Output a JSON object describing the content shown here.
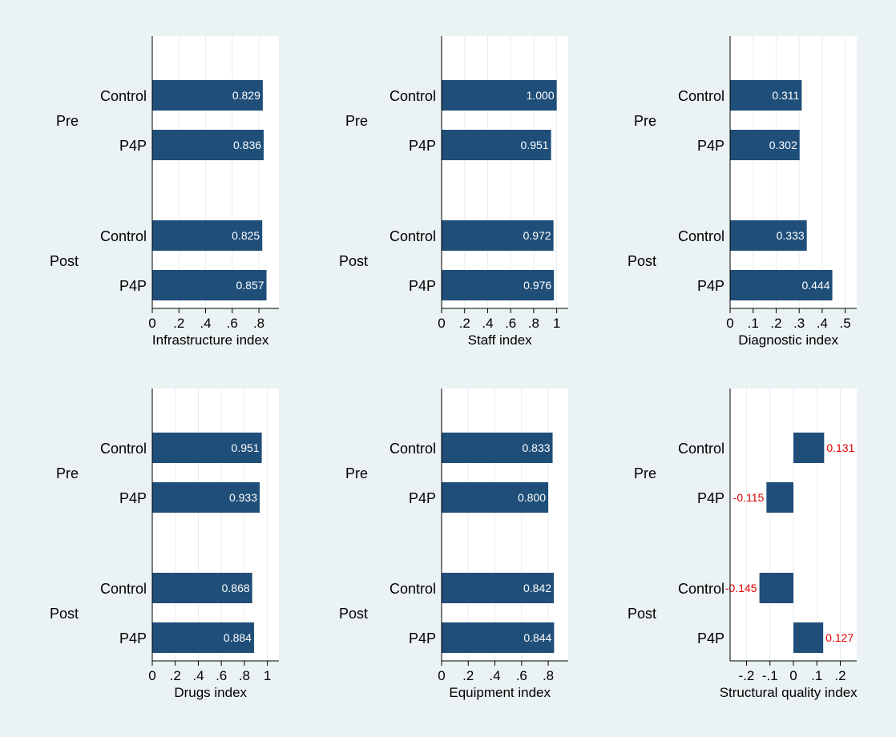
{
  "colors": {
    "background": "#eaf2f3",
    "plot_background": "#ffffff",
    "bar": "#1f4e79",
    "grid": "#e6eef0",
    "label_inside": "#ffffff",
    "label_outside": "#e00000",
    "text": "#000000"
  },
  "chart_data": [
    {
      "type": "bar",
      "orientation": "horizontal",
      "xlabel": "Infrastructure index",
      "groups": [
        "Pre",
        "Post"
      ],
      "categories": [
        "Control",
        "P4P"
      ],
      "values": [
        [
          0.829,
          0.836
        ],
        [
          0.825,
          0.857
        ]
      ],
      "value_labels": [
        [
          "0.829",
          "0.836"
        ],
        [
          "0.825",
          "0.857"
        ]
      ],
      "xlim": [
        0,
        0.95
      ],
      "ticks": [
        0,
        0.2,
        0.4,
        0.6,
        0.8
      ],
      "tick_labels": [
        "0",
        ".2",
        ".4",
        ".6",
        ".8"
      ],
      "grid": true,
      "label_position": "inside"
    },
    {
      "type": "bar",
      "orientation": "horizontal",
      "xlabel": "Staff index",
      "groups": [
        "Pre",
        "Post"
      ],
      "categories": [
        "Control",
        "P4P"
      ],
      "values": [
        [
          1.0,
          0.951
        ],
        [
          0.972,
          0.976
        ]
      ],
      "value_labels": [
        [
          "1.000",
          "0.951"
        ],
        [
          "0.972",
          "0.976"
        ]
      ],
      "xlim": [
        0,
        1.1
      ],
      "ticks": [
        0,
        0.2,
        0.4,
        0.6,
        0.8,
        1.0
      ],
      "tick_labels": [
        "0",
        ".2",
        ".4",
        ".6",
        ".8",
        "1"
      ],
      "grid": true,
      "label_position": "inside"
    },
    {
      "type": "bar",
      "orientation": "horizontal",
      "xlabel": "Diagnostic index",
      "groups": [
        "Pre",
        "Post"
      ],
      "categories": [
        "Control",
        "P4P"
      ],
      "values": [
        [
          0.311,
          0.302
        ],
        [
          0.333,
          0.444
        ]
      ],
      "value_labels": [
        [
          "0.311",
          "0.302"
        ],
        [
          "0.333",
          "0.444"
        ]
      ],
      "xlim": [
        0,
        0.55
      ],
      "ticks": [
        0,
        0.1,
        0.2,
        0.3,
        0.4,
        0.5
      ],
      "tick_labels": [
        "0",
        ".1",
        ".2",
        ".3",
        ".4",
        ".5"
      ],
      "grid": true,
      "label_position": "inside"
    },
    {
      "type": "bar",
      "orientation": "horizontal",
      "xlabel": "Drugs index",
      "groups": [
        "Pre",
        "Post"
      ],
      "categories": [
        "Control",
        "P4P"
      ],
      "values": [
        [
          0.951,
          0.933
        ],
        [
          0.868,
          0.884
        ]
      ],
      "value_labels": [
        [
          "0.951",
          "0.933"
        ],
        [
          "0.868",
          "0.884"
        ]
      ],
      "xlim": [
        0,
        1.1
      ],
      "ticks": [
        0,
        0.2,
        0.4,
        0.6,
        0.8,
        1.0
      ],
      "tick_labels": [
        "0",
        ".2",
        ".4",
        ".6",
        ".8",
        "1"
      ],
      "grid": true,
      "label_position": "inside"
    },
    {
      "type": "bar",
      "orientation": "horizontal",
      "xlabel": "Equipment index",
      "groups": [
        "Pre",
        "Post"
      ],
      "categories": [
        "Control",
        "P4P"
      ],
      "values": [
        [
          0.833,
          0.8
        ],
        [
          0.842,
          0.844
        ]
      ],
      "value_labels": [
        [
          "0.833",
          "0.800"
        ],
        [
          "0.842",
          "0.844"
        ]
      ],
      "xlim": [
        0,
        0.95
      ],
      "ticks": [
        0,
        0.2,
        0.4,
        0.6,
        0.8
      ],
      "tick_labels": [
        "0",
        ".2",
        ".4",
        ".6",
        ".8"
      ],
      "grid": true,
      "label_position": "inside"
    },
    {
      "type": "bar",
      "orientation": "horizontal",
      "xlabel": "Structural quality index",
      "groups": [
        "Pre",
        "Post"
      ],
      "categories": [
        "Control",
        "P4P"
      ],
      "values": [
        [
          0.131,
          -0.115
        ],
        [
          -0.145,
          0.127
        ]
      ],
      "value_labels": [
        [
          "0.131",
          "-0.115"
        ],
        [
          "-0.145",
          "0.127"
        ]
      ],
      "xlim": [
        -0.27,
        0.27
      ],
      "ticks": [
        -0.2,
        -0.1,
        0,
        0.1,
        0.2
      ],
      "tick_labels": [
        "-.2",
        "-.1",
        "0",
        ".1",
        ".2"
      ],
      "grid": true,
      "label_position": "outside"
    }
  ]
}
